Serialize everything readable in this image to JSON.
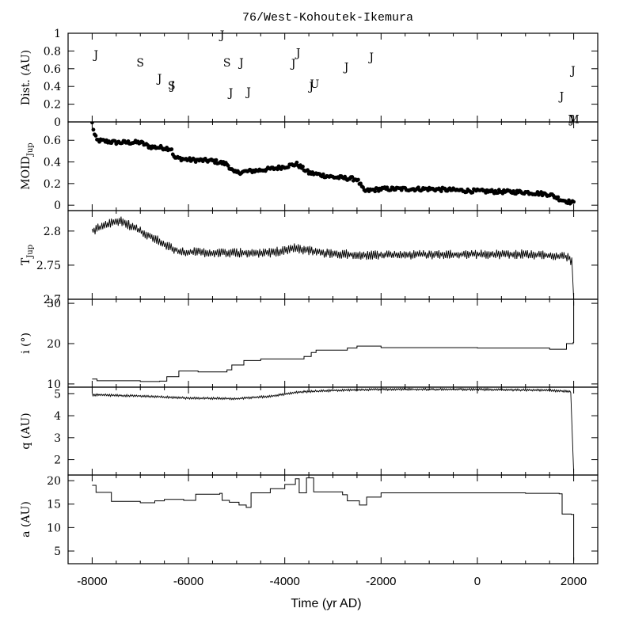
{
  "title": "76/West-Kohoutek-Ikemura",
  "xlabel": "Time (yr AD)",
  "colors": {
    "ink": "#000000",
    "background": "#ffffff"
  },
  "chart_data": {
    "type": "line",
    "x_axis": {
      "label": "Time (yr AD)",
      "range": [
        -8500,
        2500
      ],
      "ticks": [
        -8000,
        -6000,
        -4000,
        -2000,
        0,
        2000
      ]
    },
    "panels": [
      {
        "id": "dist",
        "type": "scatter",
        "ylabel": "Dist. (AU)",
        "ylim": [
          0,
          1
        ],
        "yticks": [
          0,
          0.2,
          0.4,
          0.6,
          0.8,
          1
        ],
        "ytick_labels": [
          "0",
          "0.2",
          "0.4",
          "0.6",
          "0.8",
          "1"
        ],
        "encounters": [
          {
            "x": -7920,
            "y": 0.76,
            "label": "J"
          },
          {
            "x": -7000,
            "y": 0.67,
            "label": "S"
          },
          {
            "x": -6600,
            "y": 0.49,
            "label": "J"
          },
          {
            "x": -6350,
            "y": 0.41,
            "label": "S"
          },
          {
            "x": -6330,
            "y": 0.41,
            "label": "J"
          },
          {
            "x": -5300,
            "y": 0.98,
            "label": "J"
          },
          {
            "x": -5200,
            "y": 0.67,
            "label": "S"
          },
          {
            "x": -5120,
            "y": 0.33,
            "label": "J"
          },
          {
            "x": -4900,
            "y": 0.67,
            "label": "J"
          },
          {
            "x": -4750,
            "y": 0.34,
            "label": "J"
          },
          {
            "x": -3820,
            "y": 0.66,
            "label": "J"
          },
          {
            "x": -3720,
            "y": 0.78,
            "label": "J"
          },
          {
            "x": -3450,
            "y": 0.4,
            "label": "J"
          },
          {
            "x": -3380,
            "y": 0.43,
            "label": "U"
          },
          {
            "x": -2720,
            "y": 0.62,
            "label": "J"
          },
          {
            "x": -2200,
            "y": 0.73,
            "label": "J"
          },
          {
            "x": 1750,
            "y": 0.29,
            "label": "J"
          },
          {
            "x": 1990,
            "y": 0.58,
            "label": "J"
          },
          {
            "x": 1965,
            "y": 0.03,
            "label": "J"
          },
          {
            "x": 2000,
            "y": 0.03,
            "label": "M"
          }
        ]
      },
      {
        "id": "moid",
        "type": "scatter",
        "ylabel": "MOID",
        "ylabel_sub": "Jup",
        "ylim": [
          -0.05,
          0.77
        ],
        "yticks": [
          0,
          0.2,
          0.4,
          0.6
        ],
        "ytick_labels": [
          "0",
          "0.2",
          "0.4",
          "0.6"
        ],
        "trend": [
          [
            -8000,
            0.76
          ],
          [
            -7950,
            0.65
          ],
          [
            -7900,
            0.6
          ],
          [
            -7500,
            0.58
          ],
          [
            -7000,
            0.58
          ],
          [
            -6800,
            0.54
          ],
          [
            -6500,
            0.53
          ],
          [
            -6350,
            0.52
          ],
          [
            -6300,
            0.44
          ],
          [
            -6000,
            0.42
          ],
          [
            -5500,
            0.41
          ],
          [
            -5200,
            0.38
          ],
          [
            -5050,
            0.3
          ],
          [
            -4600,
            0.32
          ],
          [
            -4200,
            0.34
          ],
          [
            -3750,
            0.38
          ],
          [
            -3500,
            0.3
          ],
          [
            -3000,
            0.26
          ],
          [
            -2500,
            0.24
          ],
          [
            -2350,
            0.13
          ],
          [
            -2000,
            0.15
          ],
          [
            -1000,
            0.15
          ],
          [
            0,
            0.13
          ],
          [
            1000,
            0.12
          ],
          [
            1500,
            0.1
          ],
          [
            1750,
            0.05
          ],
          [
            2000,
            0.02
          ]
        ]
      },
      {
        "id": "tjup",
        "type": "line",
        "ylabel": "T",
        "ylabel_sub": "Jup",
        "ylim": [
          2.7,
          2.83
        ],
        "yticks": [
          2.7,
          2.75,
          2.8
        ],
        "ytick_labels": [
          "2.7",
          "2.75",
          "2.8"
        ],
        "trend": [
          [
            -8000,
            2.8
          ],
          [
            -7700,
            2.81
          ],
          [
            -7400,
            2.815
          ],
          [
            -7000,
            2.8
          ],
          [
            -6600,
            2.785
          ],
          [
            -6200,
            2.77
          ],
          [
            -5500,
            2.768
          ],
          [
            -4800,
            2.768
          ],
          [
            -4300,
            2.768
          ],
          [
            -3800,
            2.775
          ],
          [
            -3200,
            2.768
          ],
          [
            -2500,
            2.765
          ],
          [
            -1500,
            2.765
          ],
          [
            0,
            2.766
          ],
          [
            1000,
            2.766
          ],
          [
            1900,
            2.762
          ],
          [
            1960,
            2.755
          ],
          [
            2000,
            2.7
          ]
        ]
      },
      {
        "id": "incl",
        "type": "line",
        "ylabel": "i (°)",
        "ylim": [
          9.2,
          31
        ],
        "yticks": [
          10,
          20,
          30
        ],
        "ytick_labels": [
          "10",
          "20",
          "30"
        ],
        "steps": [
          [
            -8000,
            11.2
          ],
          [
            -7900,
            10.8
          ],
          [
            -7000,
            10.6
          ],
          [
            -6600,
            10.7
          ],
          [
            -6450,
            11.8
          ],
          [
            -6200,
            13.2
          ],
          [
            -5800,
            13.0
          ],
          [
            -5200,
            13.5
          ],
          [
            -5100,
            14.7
          ],
          [
            -4850,
            15.8
          ],
          [
            -4500,
            16.2
          ],
          [
            -3600,
            16.8
          ],
          [
            -3450,
            17.8
          ],
          [
            -3350,
            18.4
          ],
          [
            -2700,
            18.9
          ],
          [
            -2500,
            19.4
          ],
          [
            -2000,
            19.0
          ],
          [
            0,
            18.9
          ],
          [
            1500,
            18.6
          ],
          [
            1850,
            20.0
          ],
          [
            1990,
            20.3
          ],
          [
            2000,
            30.5
          ]
        ]
      },
      {
        "id": "q",
        "type": "line",
        "ylabel": "q (AU)",
        "ylim": [
          1.3,
          5.3
        ],
        "yticks": [
          2,
          3,
          4,
          5
        ],
        "ytick_labels": [
          "2",
          "3",
          "4",
          "5"
        ],
        "trend": [
          [
            -8000,
            4.95
          ],
          [
            -7000,
            4.9
          ],
          [
            -6000,
            4.8
          ],
          [
            -5000,
            4.78
          ],
          [
            -4300,
            4.88
          ],
          [
            -3700,
            5.08
          ],
          [
            -3000,
            5.15
          ],
          [
            -2000,
            5.2
          ],
          [
            0,
            5.2
          ],
          [
            1500,
            5.15
          ],
          [
            1950,
            5.1
          ],
          [
            2000,
            1.4
          ]
        ]
      },
      {
        "id": "a",
        "type": "line",
        "ylabel": "a (AU)",
        "ylim": [
          2.3,
          21.2
        ],
        "yticks": [
          5,
          10,
          15,
          20
        ],
        "ytick_labels": [
          "5",
          "10",
          "15",
          "20"
        ],
        "steps": [
          [
            -8000,
            19.0
          ],
          [
            -7920,
            17.5
          ],
          [
            -7600,
            15.6
          ],
          [
            -7000,
            15.3
          ],
          [
            -6700,
            15.7
          ],
          [
            -6500,
            16.0
          ],
          [
            -6100,
            15.8
          ],
          [
            -5850,
            17.1
          ],
          [
            -5350,
            17.3
          ],
          [
            -5300,
            15.8
          ],
          [
            -5150,
            15.4
          ],
          [
            -4950,
            14.8
          ],
          [
            -4800,
            14.3
          ],
          [
            -4700,
            17.4
          ],
          [
            -4300,
            18.3
          ],
          [
            -4000,
            19.2
          ],
          [
            -3780,
            20.4
          ],
          [
            -3700,
            17.4
          ],
          [
            -3550,
            20.6
          ],
          [
            -3400,
            17.6
          ],
          [
            -2800,
            17.0
          ],
          [
            -2700,
            15.7
          ],
          [
            -2450,
            14.8
          ],
          [
            -2300,
            16.5
          ],
          [
            -2000,
            17.4
          ],
          [
            1000,
            17.3
          ],
          [
            1700,
            17.2
          ],
          [
            1760,
            12.9
          ],
          [
            1950,
            12.8
          ],
          [
            2000,
            3.0
          ]
        ]
      }
    ]
  }
}
